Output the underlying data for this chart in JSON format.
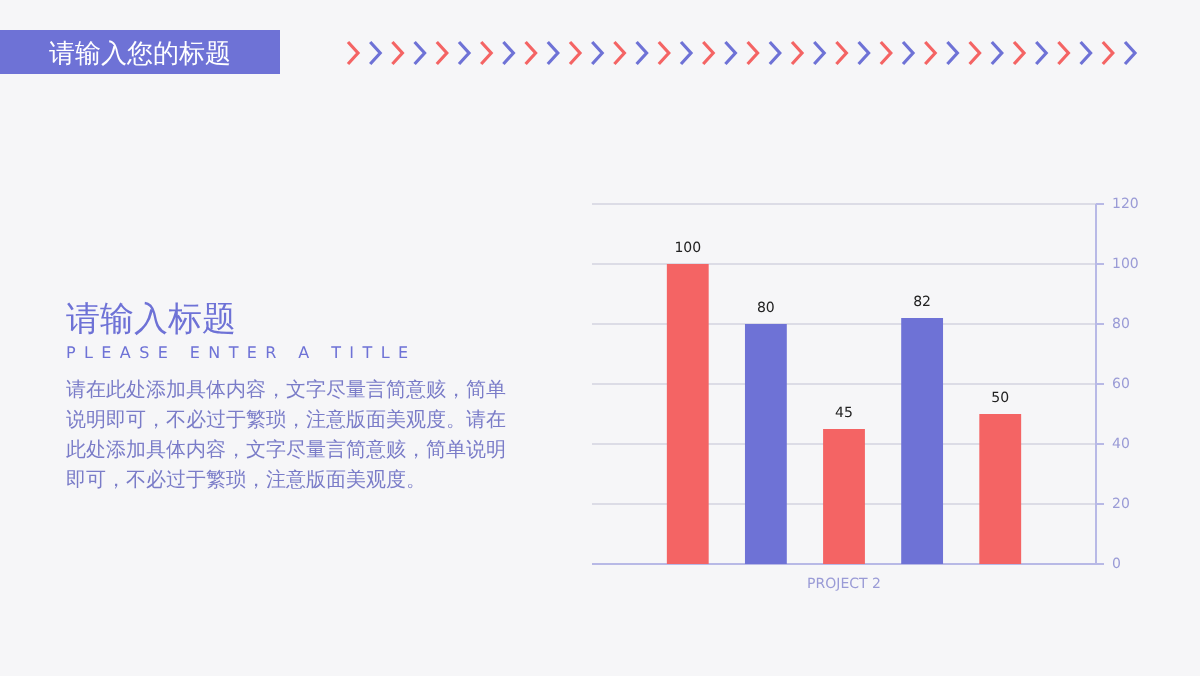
{
  "chart_data": {
    "type": "bar",
    "title": "请输入您的标题",
    "subtitle": "请输入标题",
    "annotations": [
      "PLEASE ENTER A TITLE",
      "请在此处添加具体内容，文字尽量言简意赅，简单说明即可，不必过于繁琐，注意版面美观度。请在此处添加具体内容，文字尽量言简意赅，简单说明即可，不必过于繁琐，注意版面美观度。"
    ],
    "categories": [
      "PROJECT 2"
    ],
    "series": [
      {
        "color": "#f46464",
        "values": [
          100
        ]
      },
      {
        "color": "#6e72d6",
        "values": [
          80
        ]
      },
      {
        "color": "#f46464",
        "values": [
          45
        ]
      },
      {
        "color": "#6e72d6",
        "values": [
          82
        ]
      },
      {
        "color": "#f46464",
        "values": [
          50
        ]
      }
    ],
    "ylim": [
      0,
      120
    ],
    "yticks": [
      0,
      20,
      40,
      60,
      80,
      100,
      120
    ],
    "data_labels": true,
    "grid": true
  }
}
